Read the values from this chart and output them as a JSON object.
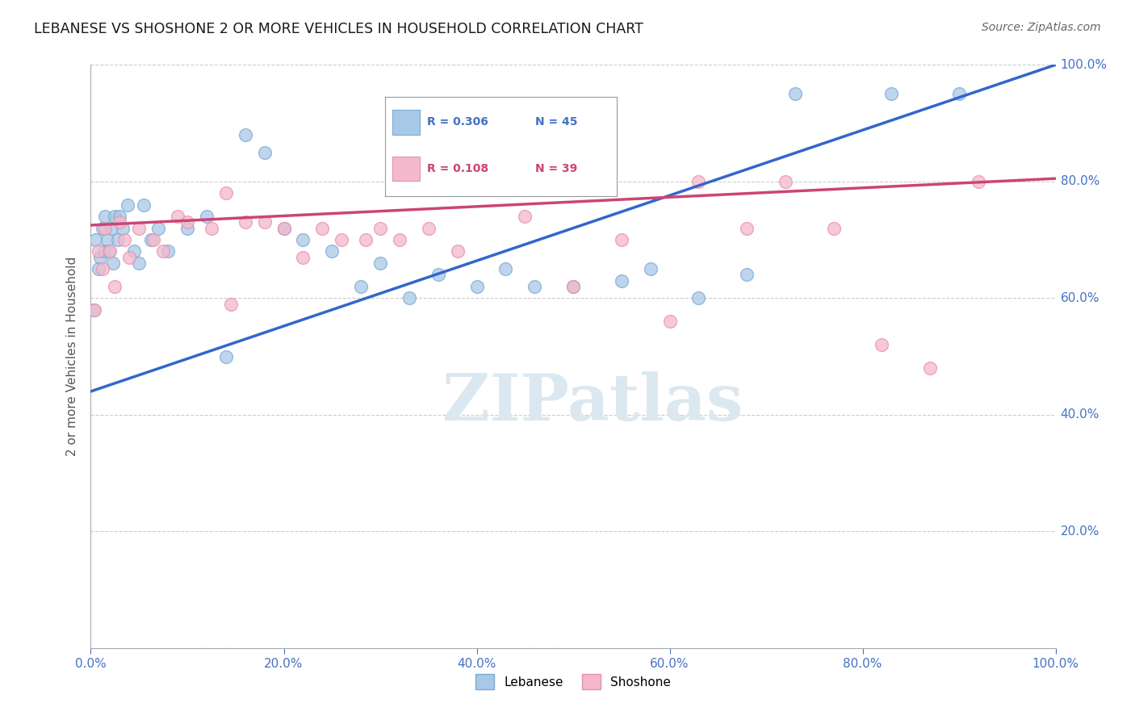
{
  "title": "LEBANESE VS SHOSHONE 2 OR MORE VEHICLES IN HOUSEHOLD CORRELATION CHART",
  "source": "Source: ZipAtlas.com",
  "ylabel": "2 or more Vehicles in Household",
  "legend_blue_r": "R = 0.306",
  "legend_blue_n": "N = 45",
  "legend_pink_r": "R = 0.108",
  "legend_pink_n": "N = 39",
  "blue_color": "#a8c8e8",
  "pink_color": "#f4b8cc",
  "blue_line_color": "#3366cc",
  "pink_line_color": "#cc4477",
  "blue_scatter_edge": "#7aaad0",
  "pink_scatter_edge": "#e890aa",
  "ytick_labels": [
    "0.0%",
    "20.0%",
    "40.0%",
    "60.0%",
    "80.0%",
    "100.0%"
  ],
  "ytick_values": [
    0,
    20,
    40,
    60,
    80,
    100
  ],
  "xtick_labels": [
    "0.0%",
    "20.0%",
    "40.0%",
    "60.0%",
    "80.0%",
    "100.0%"
  ],
  "xtick_values": [
    0,
    20,
    40,
    60,
    80,
    100
  ],
  "blue_x": [
    0.3,
    0.5,
    0.8,
    1.0,
    1.2,
    1.4,
    1.5,
    1.7,
    1.9,
    2.1,
    2.3,
    2.5,
    2.8,
    3.0,
    3.3,
    3.8,
    4.5,
    5.0,
    5.5,
    6.2,
    7.0,
    8.0,
    10.0,
    12.0,
    14.0,
    16.0,
    18.0,
    20.0,
    22.0,
    25.0,
    28.0,
    30.0,
    33.0,
    36.0,
    40.0,
    43.0,
    46.0,
    50.0,
    55.0,
    58.0,
    63.0,
    68.0,
    73.0,
    83.0,
    90.0
  ],
  "blue_y": [
    58.0,
    70.0,
    65.0,
    67.0,
    72.0,
    68.0,
    74.0,
    70.0,
    68.0,
    72.0,
    66.0,
    74.0,
    70.0,
    74.0,
    72.0,
    76.0,
    68.0,
    66.0,
    76.0,
    70.0,
    72.0,
    68.0,
    72.0,
    74.0,
    50.0,
    88.0,
    85.0,
    72.0,
    70.0,
    68.0,
    62.0,
    66.0,
    60.0,
    64.0,
    62.0,
    65.0,
    62.0,
    62.0,
    63.0,
    65.0,
    60.0,
    64.0,
    95.0,
    95.0,
    95.0
  ],
  "pink_x": [
    0.4,
    0.8,
    1.2,
    1.5,
    2.0,
    2.5,
    3.0,
    3.5,
    4.0,
    5.0,
    6.5,
    7.5,
    9.0,
    10.0,
    12.5,
    14.0,
    16.0,
    18.0,
    20.0,
    22.0,
    24.0,
    26.0,
    28.5,
    30.0,
    32.0,
    35.0,
    38.0,
    14.5,
    45.0,
    50.0,
    55.0,
    60.0,
    63.0,
    68.0,
    72.0,
    77.0,
    82.0,
    87.0,
    92.0
  ],
  "pink_y": [
    58.0,
    68.0,
    65.0,
    72.0,
    68.0,
    62.0,
    73.0,
    70.0,
    67.0,
    72.0,
    70.0,
    68.0,
    74.0,
    73.0,
    72.0,
    78.0,
    73.0,
    73.0,
    72.0,
    67.0,
    72.0,
    70.0,
    70.0,
    72.0,
    70.0,
    72.0,
    68.0,
    59.0,
    74.0,
    62.0,
    70.0,
    56.0,
    80.0,
    72.0,
    80.0,
    72.0,
    52.0,
    48.0,
    80.0
  ],
  "blue_trendline_x": [
    0,
    100
  ],
  "blue_trendline_y": [
    44,
    100
  ],
  "pink_trendline_x": [
    0,
    100
  ],
  "pink_trendline_y": [
    72.5,
    80.5
  ],
  "bg_color": "#ffffff",
  "grid_color": "#cccccc",
  "title_color": "#1a1a1a",
  "axis_tick_color": "#4472c4",
  "right_label_color": "#4472c4",
  "marker_size": 130,
  "watermark_text": "ZIPatlas",
  "watermark_color": "#dce8f0",
  "legend_r_color_blue": "#4472c4",
  "legend_n_color_blue": "#4472c4",
  "legend_r_color_pink": "#cc4477",
  "legend_n_color_pink": "#cc4477"
}
